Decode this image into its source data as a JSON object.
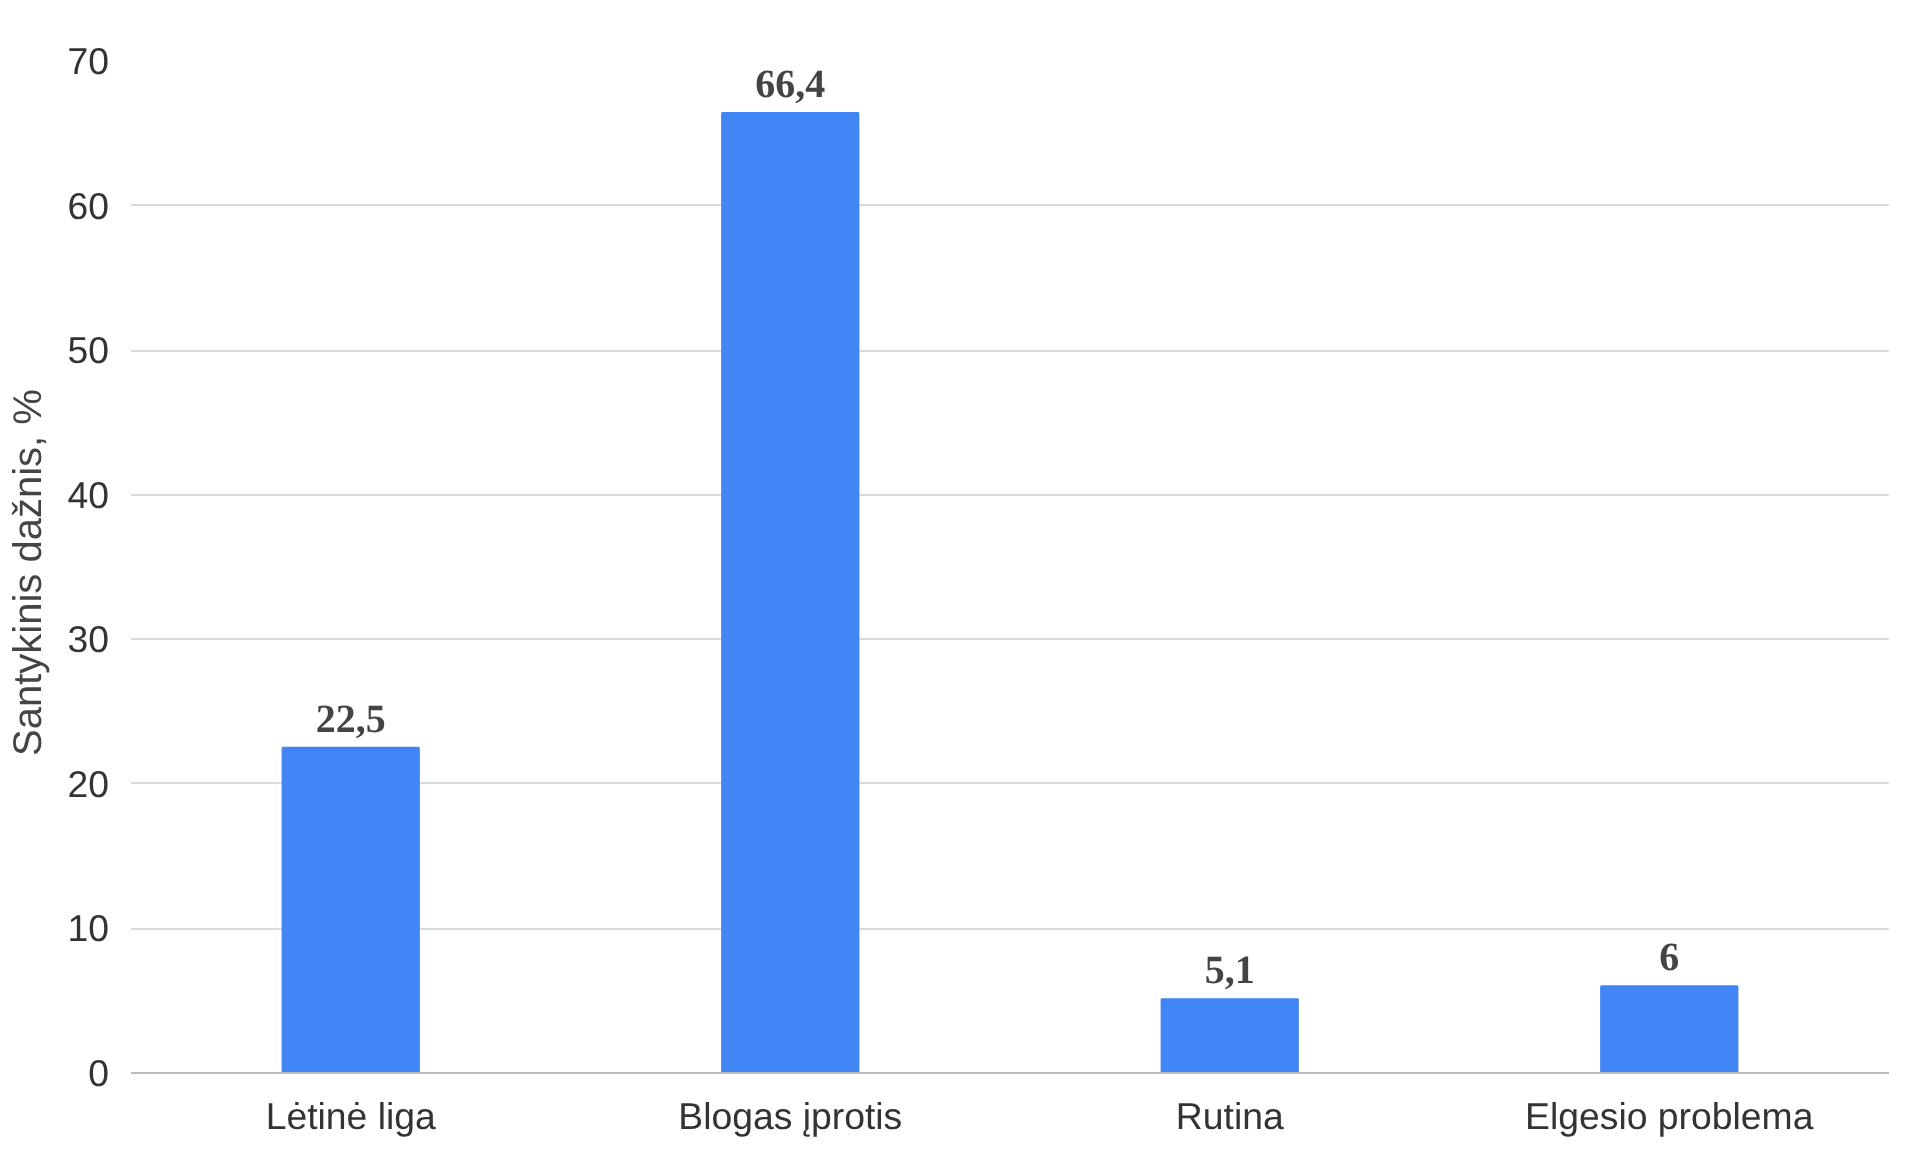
{
  "chart_data": {
    "type": "bar",
    "ylabel": "Santykinis dažnis,  %",
    "categories": [
      "Lėtinė liga",
      "Blogas įprotis",
      "Rutina",
      "Elgesio problema"
    ],
    "values": [
      22.5,
      66.4,
      5.1,
      6
    ],
    "value_labels": [
      "22,5",
      "66,4",
      "5,1",
      "6"
    ],
    "color": "#4285f4",
    "ylim": [
      0,
      70
    ],
    "yticks": [
      0,
      10,
      20,
      30,
      40,
      50,
      60,
      70
    ],
    "grid": "y"
  }
}
